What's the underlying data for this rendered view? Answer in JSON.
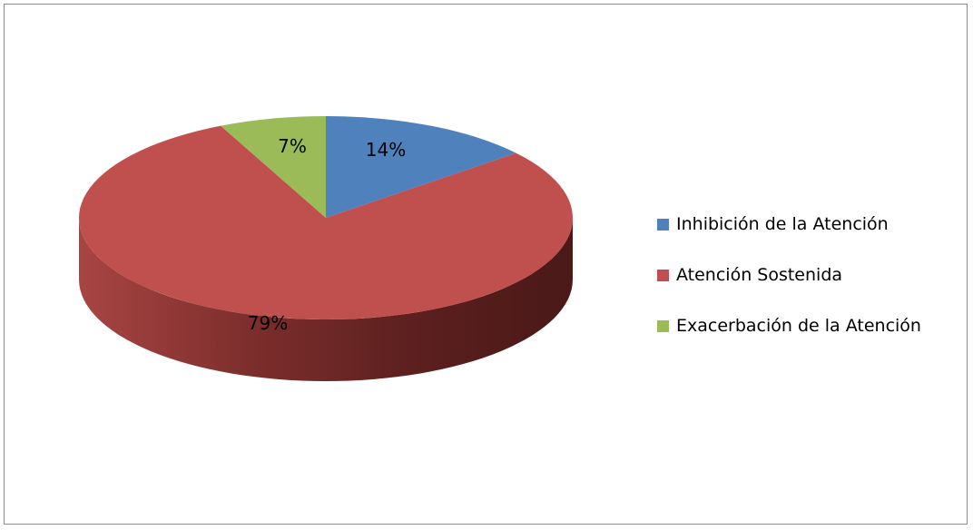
{
  "chart_data": {
    "type": "pie",
    "title": "",
    "legend_position": "right",
    "slices": [
      {
        "name": "Inhibición de la Atención",
        "value": 14,
        "label": "14%",
        "color": "#4f81bd"
      },
      {
        "name": "Atención Sostenida",
        "value": 79,
        "label": "79%",
        "color": "#c0504d"
      },
      {
        "name": "Exacerbación de la Atención",
        "value": 7,
        "label": "7%",
        "color": "#9bbb59"
      }
    ]
  }
}
